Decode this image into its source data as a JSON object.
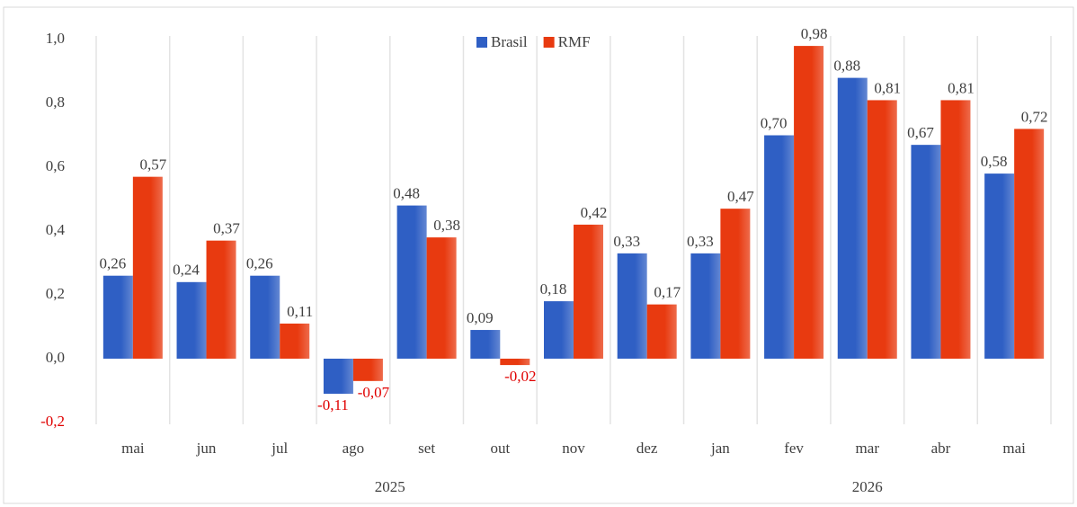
{
  "chart_data": {
    "type": "bar",
    "categories": [
      "mai",
      "jun",
      "jul",
      "ago",
      "set",
      "out",
      "nov",
      "dez",
      "jan",
      "fev",
      "mar",
      "abr",
      "mai"
    ],
    "years": [
      "2025",
      "2025",
      "2025",
      "2025",
      "2025",
      "2025",
      "2025",
      "2025",
      "2026",
      "2026",
      "2026",
      "2026",
      "2026"
    ],
    "series": [
      {
        "name": "Brasil",
        "color": "#2f5fc4",
        "values": [
          0.26,
          0.24,
          0.26,
          -0.11,
          0.48,
          0.09,
          0.18,
          0.33,
          0.33,
          0.7,
          0.88,
          0.67,
          0.58
        ],
        "value_labels": [
          "0,26",
          "0,24",
          "0,26",
          "-0,11",
          "0,48",
          "0,09",
          "0,18",
          "0,33",
          "0,33",
          "0,70",
          "0,88",
          "0,67",
          "0,58"
        ]
      },
      {
        "name": "RMF",
        "color": "#e83a10",
        "values": [
          0.57,
          0.37,
          0.11,
          -0.07,
          0.38,
          -0.02,
          0.42,
          0.17,
          0.47,
          0.98,
          0.81,
          0.81,
          0.72
        ],
        "value_labels": [
          "0,57",
          "0,37",
          "0,11",
          "-0,07",
          "0,38",
          "-0,02",
          "0,42",
          "0,17",
          "0,47",
          "0,98",
          "0,81",
          "0,81",
          "0,72"
        ]
      }
    ],
    "ylim": [
      -0.2,
      1.0
    ],
    "yticks": [
      {
        "value": -0.2,
        "label": "-0,2"
      },
      {
        "value": 0,
        "label": "0,0"
      },
      {
        "value": 0.2,
        "label": "0,2"
      },
      {
        "value": 0.4,
        "label": "0,4"
      },
      {
        "value": 0.6,
        "label": "0,6"
      },
      {
        "value": 0.8,
        "label": "0,8"
      },
      {
        "value": 1.0,
        "label": "1,0"
      }
    ],
    "negative_color": "#e00000",
    "legend": "top"
  }
}
